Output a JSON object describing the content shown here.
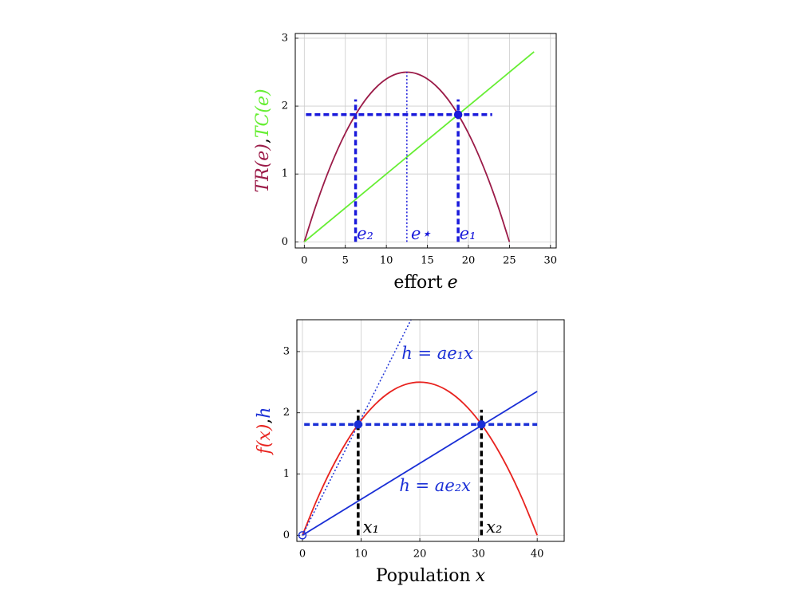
{
  "chart_data": [
    {
      "type": "line",
      "xlabel_parts": [
        {
          "text": "effort",
          "italic": false
        },
        {
          "text": "e",
          "italic": true
        }
      ],
      "ylabel_parts": [
        {
          "text": "TR(e)",
          "color": "#9b1b48",
          "italic": true
        },
        {
          "text": ",",
          "color": "#000000",
          "italic": false
        },
        {
          "text": "TC(e)",
          "color": "#66ee33",
          "italic": true
        }
      ],
      "xlim": [
        -1.1,
        30.7
      ],
      "ylim": [
        -0.09,
        3.07
      ],
      "xticks": [
        0,
        5,
        10,
        15,
        20,
        25,
        30
      ],
      "yticks": [
        0,
        1,
        2,
        3
      ],
      "grid": true,
      "series": [
        {
          "color": "#9b1b48",
          "style": "solid",
          "smooth": true,
          "x": [
            0,
            1.25,
            2.5,
            3.75,
            5,
            6.25,
            7.5,
            8.75,
            10,
            11.25,
            12.5,
            13.75,
            15,
            16.25,
            17.5,
            18.75,
            20,
            21.25,
            22.5,
            23.75,
            25
          ],
          "values": [
            0,
            0.475,
            0.9,
            1.275,
            1.6,
            1.875,
            2.1,
            2.275,
            2.4,
            2.475,
            2.5,
            2.475,
            2.4,
            2.275,
            2.1,
            1.875,
            1.6,
            1.275,
            0.9,
            0.475,
            0
          ]
        },
        {
          "color": "#66ee33",
          "style": "solid",
          "x": [
            0,
            28
          ],
          "values": [
            0,
            2.8
          ]
        },
        {
          "color": "#1a1adb",
          "style": "dotted",
          "x": [
            12.5,
            12.5
          ],
          "values": [
            0,
            2.5
          ]
        },
        {
          "color": "#1a1adb",
          "style": "dashed",
          "x": [
            0.2,
            22.9
          ],
          "values": [
            1.875,
            1.875
          ]
        },
        {
          "color": "#1a1adb",
          "style": "dashed",
          "x": [
            6.25,
            6.25
          ],
          "values": [
            0,
            2.1
          ]
        },
        {
          "color": "#1a1adb",
          "style": "dashed",
          "x": [
            18.75,
            18.75
          ],
          "values": [
            0,
            2.1
          ]
        }
      ],
      "points": [
        {
          "x": 18.75,
          "y": 1.875,
          "color": "#1a1adb",
          "filled": true
        }
      ],
      "annotations": [
        {
          "text": "e₂",
          "x": 6.4,
          "y": 0.04,
          "color": "#1a1adb"
        },
        {
          "text": "e⋆",
          "x": 13.0,
          "y": 0.04,
          "color": "#1a1adb"
        },
        {
          "text": "e₁",
          "x": 18.9,
          "y": 0.04,
          "color": "#1a1adb"
        }
      ]
    },
    {
      "type": "line",
      "xlabel_parts": [
        {
          "text": "Population",
          "italic": false
        },
        {
          "text": "x",
          "italic": true
        }
      ],
      "ylabel_parts": [
        {
          "text": "f(x)",
          "color": "#e8231f",
          "italic": true
        },
        {
          "text": ",",
          "color": "#000000",
          "italic": false
        },
        {
          "text": "h",
          "color": "#1a2fd6",
          "italic": true
        }
      ],
      "xlim": [
        -0.95,
        44.6
      ],
      "ylim": [
        -0.1,
        3.52
      ],
      "xticks": [
        0,
        10,
        20,
        30,
        40
      ],
      "yticks": [
        0,
        1,
        2,
        3
      ],
      "grid": true,
      "series": [
        {
          "color": "#e8231f",
          "style": "solid",
          "smooth": true,
          "x": [
            0,
            2.5,
            5,
            7.5,
            10,
            12.5,
            15,
            17.5,
            20,
            22.5,
            25,
            27.5,
            30,
            32.5,
            35,
            37.5,
            40
          ],
          "values": [
            0,
            0.586,
            1.094,
            1.523,
            1.875,
            2.148,
            2.344,
            2.461,
            2.5,
            2.461,
            2.344,
            2.148,
            1.875,
            1.523,
            1.094,
            0.586,
            0
          ]
        },
        {
          "color": "#1a2fd6",
          "style": "solid",
          "x": [
            0,
            40
          ],
          "values": [
            0,
            2.35
          ]
        },
        {
          "color": "#1a2fd6",
          "style": "dotted",
          "x": [
            0,
            18.5
          ],
          "values": [
            0,
            3.52
          ]
        },
        {
          "color": "#1a2fd6",
          "style": "dashed",
          "x": [
            0.3,
            40
          ],
          "values": [
            1.81,
            1.81
          ]
        },
        {
          "color": "#000000",
          "style": "dashed",
          "x": [
            9.5,
            9.5
          ],
          "values": [
            0,
            2.05
          ]
        },
        {
          "color": "#000000",
          "style": "dashed",
          "x": [
            30.5,
            30.5
          ],
          "values": [
            0,
            2.05
          ]
        }
      ],
      "points": [
        {
          "x": 9.5,
          "y": 1.81,
          "color": "#1a2fd6",
          "filled": true
        },
        {
          "x": 30.5,
          "y": 1.81,
          "color": "#1a2fd6",
          "filled": true
        },
        {
          "x": 0,
          "y": 0,
          "color": "#1a2fd6",
          "filled": false
        }
      ],
      "annotations": [
        {
          "text": "h = ae₁x",
          "x": 16.9,
          "y": 2.88,
          "color": "#1a2fd6"
        },
        {
          "text": "h = ae₂x",
          "x": 16.5,
          "y": 0.72,
          "color": "#1a2fd6"
        },
        {
          "text": "x₁",
          "x": 10.3,
          "y": 0.04,
          "color": "#000000"
        },
        {
          "text": "x₂",
          "x": 31.3,
          "y": 0.04,
          "color": "#000000"
        }
      ]
    }
  ]
}
